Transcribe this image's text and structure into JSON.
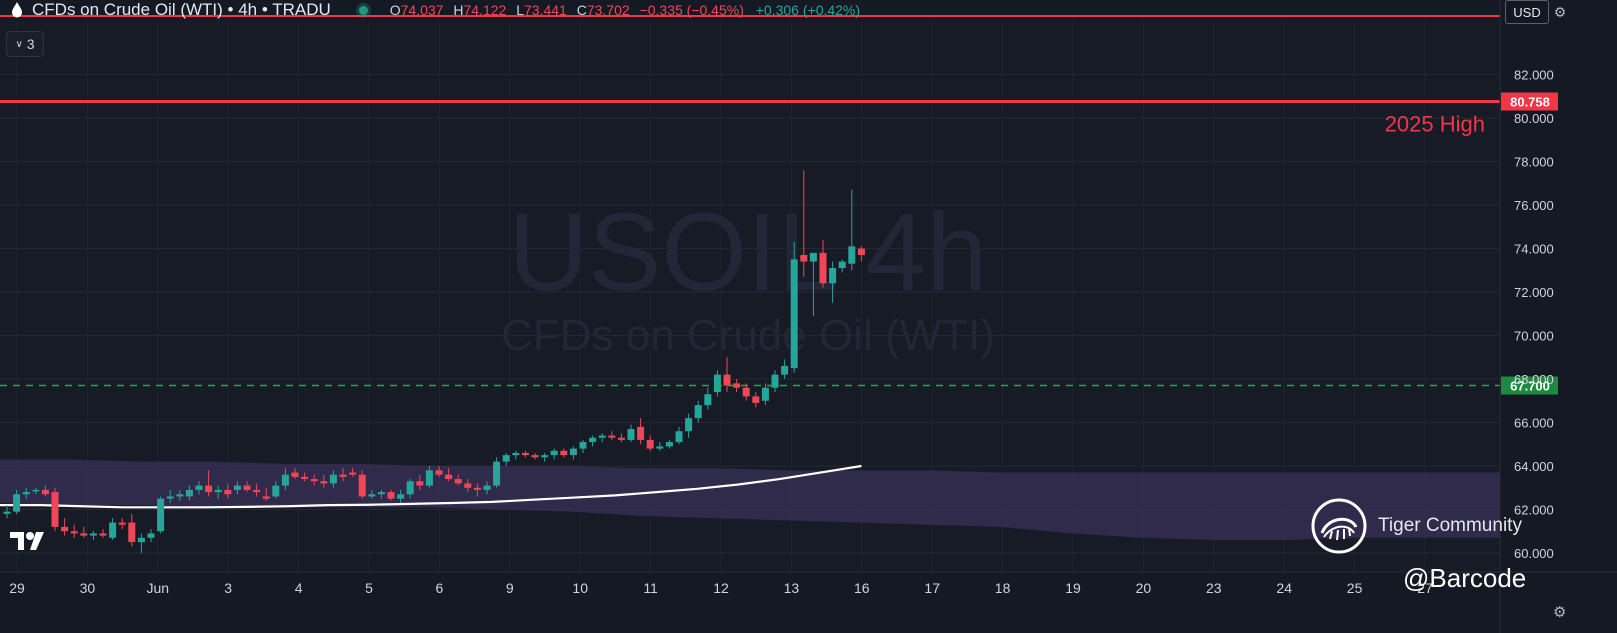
{
  "header": {
    "title": "CFDs on Crude Oil (WTI) • 4h • TRADU",
    "ohlc": [
      {
        "label": "O",
        "value": "74.037"
      },
      {
        "label": "H",
        "value": "74.122"
      },
      {
        "label": "L",
        "value": "73.441"
      },
      {
        "label": "C",
        "value": "73.702"
      }
    ],
    "change": "−0.335 (−0.45%)",
    "change2": "+0.306 (+0.42%)"
  },
  "toolbar": {
    "indicator_count": "3",
    "currency": "USD"
  },
  "watermark": {
    "symbol": "USOIL 4h",
    "name": "CFDs on Crude Oil (WTI)"
  },
  "brand": {
    "community": "Tiger Community",
    "handle": "@Barcode"
  },
  "colors": {
    "up": "#26a69a",
    "down": "#ef4757",
    "resistance": "#f23645",
    "support": "#26a65b",
    "ma": "#ffffff",
    "cloud": "#3a3058"
  },
  "chart_data": {
    "type": "candlestick",
    "ylim": [
      59.5,
      83.5
    ],
    "y_ticks": [
      "82.000",
      "80.000",
      "78.000",
      "76.000",
      "74.000",
      "72.000",
      "70.000",
      "68.000",
      "66.000",
      "64.000",
      "62.000",
      "60.000"
    ],
    "x_tick_labels": [
      "29",
      "30",
      "Jun",
      "3",
      "4",
      "5",
      "6",
      "9",
      "10",
      "11",
      "12",
      "13",
      "16",
      "17",
      "18",
      "19",
      "20",
      "23",
      "24",
      "25",
      "27"
    ],
    "lines": [
      {
        "value": 80.758,
        "label": "80.758",
        "annotation": "2025 High",
        "color": "#f23645",
        "style": "solid"
      },
      {
        "value": 67.7,
        "label": "67.700",
        "color": "#26a65b",
        "style": "dashed"
      }
    ],
    "candles": [
      {
        "o": 61.8,
        "h": 62.2,
        "l": 61.6,
        "c": 61.9
      },
      {
        "o": 61.9,
        "h": 62.9,
        "l": 61.8,
        "c": 62.7
      },
      {
        "o": 62.7,
        "h": 63.0,
        "l": 62.5,
        "c": 62.8
      },
      {
        "o": 62.9,
        "h": 63.0,
        "l": 62.7,
        "c": 62.9
      },
      {
        "o": 62.9,
        "h": 63.1,
        "l": 62.6,
        "c": 62.7
      },
      {
        "o": 62.8,
        "h": 63.0,
        "l": 61.0,
        "c": 61.2
      },
      {
        "o": 61.2,
        "h": 61.6,
        "l": 60.8,
        "c": 61.0
      },
      {
        "o": 61.0,
        "h": 61.3,
        "l": 60.7,
        "c": 60.9
      },
      {
        "o": 60.9,
        "h": 61.2,
        "l": 60.7,
        "c": 60.8
      },
      {
        "o": 60.8,
        "h": 61.0,
        "l": 60.6,
        "c": 60.9
      },
      {
        "o": 60.9,
        "h": 61.1,
        "l": 60.7,
        "c": 60.8
      },
      {
        "o": 60.7,
        "h": 61.6,
        "l": 60.6,
        "c": 61.4
      },
      {
        "o": 61.4,
        "h": 61.6,
        "l": 61.1,
        "c": 61.3
      },
      {
        "o": 61.4,
        "h": 61.8,
        "l": 60.3,
        "c": 60.5
      },
      {
        "o": 60.5,
        "h": 60.9,
        "l": 60.0,
        "c": 60.7
      },
      {
        "o": 60.7,
        "h": 61.1,
        "l": 60.5,
        "c": 60.9
      },
      {
        "o": 61.0,
        "h": 62.6,
        "l": 60.9,
        "c": 62.5
      },
      {
        "o": 62.5,
        "h": 62.9,
        "l": 62.3,
        "c": 62.6
      },
      {
        "o": 62.6,
        "h": 62.9,
        "l": 62.4,
        "c": 62.7
      },
      {
        "o": 62.6,
        "h": 63.1,
        "l": 62.4,
        "c": 62.9
      },
      {
        "o": 62.9,
        "h": 63.3,
        "l": 62.7,
        "c": 63.1
      },
      {
        "o": 63.1,
        "h": 63.8,
        "l": 62.6,
        "c": 62.8
      },
      {
        "o": 62.8,
        "h": 63.1,
        "l": 62.5,
        "c": 62.9
      },
      {
        "o": 62.9,
        "h": 63.2,
        "l": 62.5,
        "c": 62.7
      },
      {
        "o": 62.9,
        "h": 63.3,
        "l": 62.7,
        "c": 63.1
      },
      {
        "o": 63.1,
        "h": 63.3,
        "l": 62.8,
        "c": 62.9
      },
      {
        "o": 62.9,
        "h": 63.2,
        "l": 62.6,
        "c": 62.8
      },
      {
        "o": 62.6,
        "h": 63.0,
        "l": 62.4,
        "c": 62.5
      },
      {
        "o": 62.6,
        "h": 63.3,
        "l": 62.5,
        "c": 63.1
      },
      {
        "o": 63.1,
        "h": 63.9,
        "l": 62.9,
        "c": 63.6
      },
      {
        "o": 63.7,
        "h": 63.9,
        "l": 63.4,
        "c": 63.5
      },
      {
        "o": 63.5,
        "h": 63.7,
        "l": 63.3,
        "c": 63.4
      },
      {
        "o": 63.4,
        "h": 63.6,
        "l": 63.1,
        "c": 63.3
      },
      {
        "o": 63.3,
        "h": 63.6,
        "l": 63.0,
        "c": 63.2
      },
      {
        "o": 63.2,
        "h": 63.8,
        "l": 63.0,
        "c": 63.6
      },
      {
        "o": 63.6,
        "h": 63.9,
        "l": 63.3,
        "c": 63.5
      },
      {
        "o": 63.7,
        "h": 63.9,
        "l": 63.5,
        "c": 63.6
      },
      {
        "o": 63.6,
        "h": 63.8,
        "l": 62.5,
        "c": 62.6
      },
      {
        "o": 62.6,
        "h": 62.9,
        "l": 62.5,
        "c": 62.7
      },
      {
        "o": 62.7,
        "h": 62.9,
        "l": 62.5,
        "c": 62.8
      },
      {
        "o": 62.8,
        "h": 62.9,
        "l": 62.4,
        "c": 62.5
      },
      {
        "o": 62.5,
        "h": 62.9,
        "l": 62.3,
        "c": 62.7
      },
      {
        "o": 62.7,
        "h": 63.4,
        "l": 62.5,
        "c": 63.3
      },
      {
        "o": 63.3,
        "h": 63.6,
        "l": 62.9,
        "c": 63.1
      },
      {
        "o": 63.1,
        "h": 64.0,
        "l": 63.0,
        "c": 63.8
      },
      {
        "o": 63.8,
        "h": 64.0,
        "l": 63.5,
        "c": 63.6
      },
      {
        "o": 63.6,
        "h": 63.9,
        "l": 63.3,
        "c": 63.4
      },
      {
        "o": 63.4,
        "h": 63.6,
        "l": 63.1,
        "c": 63.2
      },
      {
        "o": 63.2,
        "h": 63.4,
        "l": 62.8,
        "c": 63.0
      },
      {
        "o": 63.0,
        "h": 63.2,
        "l": 62.6,
        "c": 62.9
      },
      {
        "o": 62.9,
        "h": 63.3,
        "l": 62.7,
        "c": 63.1
      },
      {
        "o": 63.1,
        "h": 64.4,
        "l": 63.0,
        "c": 64.2
      },
      {
        "o": 64.2,
        "h": 64.6,
        "l": 64.0,
        "c": 64.5
      },
      {
        "o": 64.5,
        "h": 64.7,
        "l": 64.3,
        "c": 64.6
      },
      {
        "o": 64.6,
        "h": 64.7,
        "l": 64.4,
        "c": 64.5
      },
      {
        "o": 64.5,
        "h": 64.6,
        "l": 64.3,
        "c": 64.4
      },
      {
        "o": 64.4,
        "h": 64.6,
        "l": 64.2,
        "c": 64.5
      },
      {
        "o": 64.5,
        "h": 64.8,
        "l": 64.3,
        "c": 64.7
      },
      {
        "o": 64.7,
        "h": 64.8,
        "l": 64.4,
        "c": 64.5
      },
      {
        "o": 64.5,
        "h": 64.9,
        "l": 64.3,
        "c": 64.8
      },
      {
        "o": 64.8,
        "h": 65.2,
        "l": 64.6,
        "c": 65.1
      },
      {
        "o": 65.1,
        "h": 65.4,
        "l": 64.9,
        "c": 65.3
      },
      {
        "o": 65.3,
        "h": 65.5,
        "l": 65.1,
        "c": 65.4
      },
      {
        "o": 65.4,
        "h": 65.6,
        "l": 65.2,
        "c": 65.3
      },
      {
        "o": 65.3,
        "h": 65.5,
        "l": 65.1,
        "c": 65.2
      },
      {
        "o": 65.2,
        "h": 65.9,
        "l": 65.1,
        "c": 65.7
      },
      {
        "o": 65.8,
        "h": 66.2,
        "l": 65.0,
        "c": 65.2
      },
      {
        "o": 65.2,
        "h": 65.4,
        "l": 64.7,
        "c": 64.8
      },
      {
        "o": 64.8,
        "h": 65.1,
        "l": 64.7,
        "c": 64.9
      },
      {
        "o": 64.9,
        "h": 65.2,
        "l": 64.8,
        "c": 65.1
      },
      {
        "o": 65.1,
        "h": 65.8,
        "l": 65.0,
        "c": 65.6
      },
      {
        "o": 65.6,
        "h": 66.4,
        "l": 65.3,
        "c": 66.2
      },
      {
        "o": 66.2,
        "h": 67.0,
        "l": 66.0,
        "c": 66.8
      },
      {
        "o": 66.8,
        "h": 67.6,
        "l": 66.6,
        "c": 67.3
      },
      {
        "o": 67.4,
        "h": 68.4,
        "l": 67.2,
        "c": 68.2
      },
      {
        "o": 68.2,
        "h": 69.0,
        "l": 67.4,
        "c": 67.7
      },
      {
        "o": 67.8,
        "h": 68.0,
        "l": 67.4,
        "c": 67.6
      },
      {
        "o": 67.6,
        "h": 67.8,
        "l": 67.0,
        "c": 67.2
      },
      {
        "o": 67.2,
        "h": 67.4,
        "l": 66.7,
        "c": 66.9
      },
      {
        "o": 67.0,
        "h": 67.8,
        "l": 66.8,
        "c": 67.6
      },
      {
        "o": 67.6,
        "h": 68.4,
        "l": 67.4,
        "c": 68.2
      },
      {
        "o": 68.2,
        "h": 68.9,
        "l": 68.0,
        "c": 68.6
      },
      {
        "o": 68.5,
        "h": 74.3,
        "l": 68.3,
        "c": 73.5
      },
      {
        "o": 73.7,
        "h": 77.6,
        "l": 72.7,
        "c": 73.4
      },
      {
        "o": 73.4,
        "h": 73.8,
        "l": 70.9,
        "c": 73.8
      },
      {
        "o": 73.8,
        "h": 74.4,
        "l": 72.2,
        "c": 72.4
      },
      {
        "o": 72.4,
        "h": 73.4,
        "l": 71.5,
        "c": 73.1
      },
      {
        "o": 73.1,
        "h": 73.5,
        "l": 72.9,
        "c": 73.4
      },
      {
        "o": 73.3,
        "h": 76.7,
        "l": 73.0,
        "c": 74.1
      },
      {
        "o": 74.0,
        "h": 74.1,
        "l": 73.4,
        "c": 73.7
      }
    ],
    "ma": [
      62.2,
      62.2,
      62.15,
      62.1,
      62.1,
      62.1,
      62.12,
      62.15,
      62.2,
      62.22,
      62.26,
      62.3,
      62.35,
      62.45,
      62.55,
      62.65,
      62.8,
      62.95,
      63.15,
      63.4,
      63.7,
      64.0
    ],
    "cloud": {
      "upper": [
        64.3,
        64.3,
        64.2,
        64.2,
        64.1,
        64.1,
        64.0,
        64.0,
        64.0,
        63.9,
        63.9,
        63.8,
        63.8,
        63.8,
        63.7,
        63.7,
        63.7,
        63.7,
        63.7,
        63.7,
        63.7,
        63.7
      ],
      "lower": [
        62.3,
        62.2,
        62.2,
        62.1,
        62.1,
        62.1,
        62.1,
        62.0,
        61.9,
        61.7,
        61.6,
        61.5,
        61.4,
        61.3,
        61.2,
        60.9,
        60.7,
        60.6,
        60.6,
        60.7,
        60.7,
        60.7
      ]
    }
  }
}
